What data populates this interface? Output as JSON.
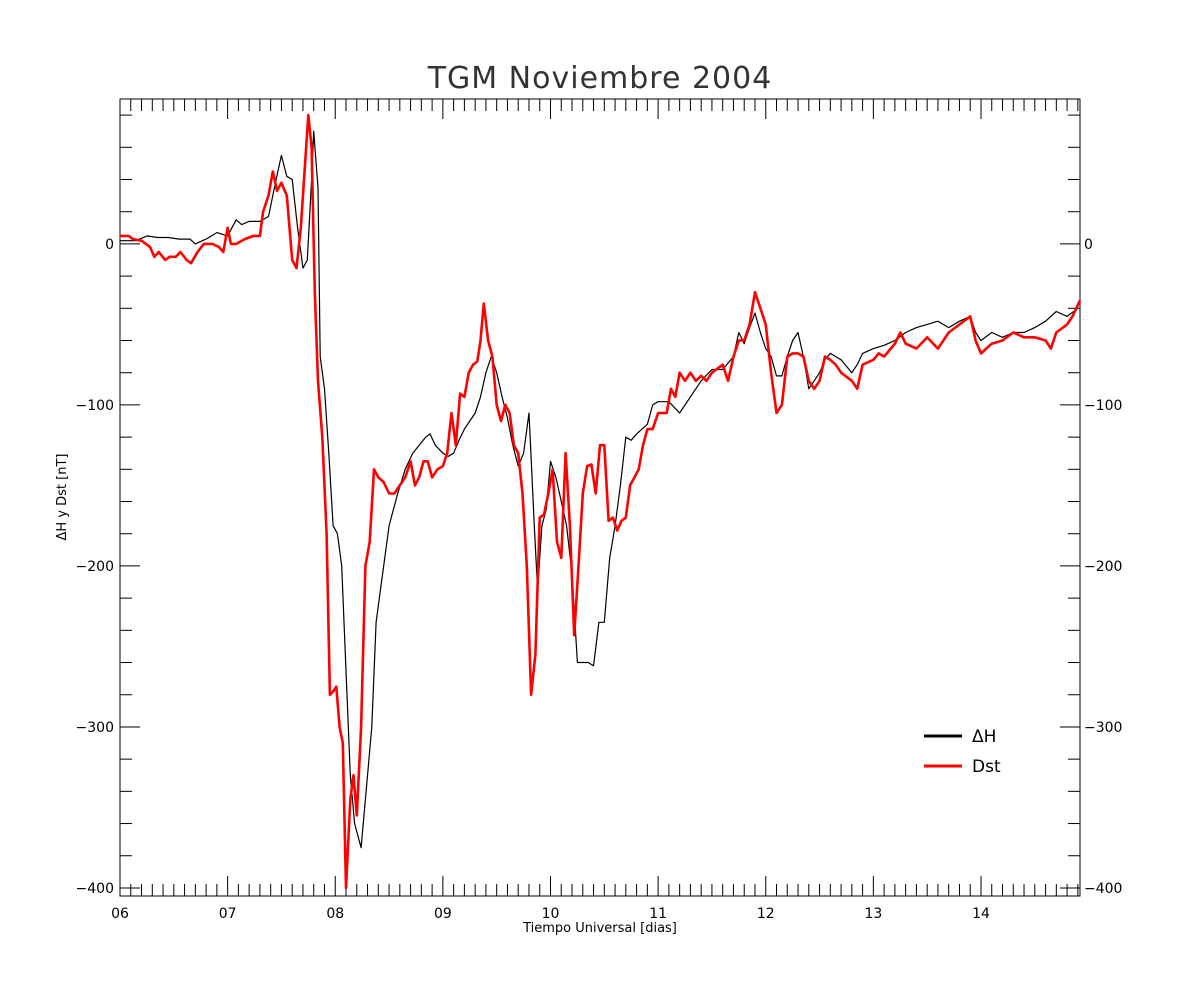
{
  "chart_data": {
    "type": "line",
    "title": "TGM Noviembre 2004",
    "xlabel": "Tiempo Universal [dias]",
    "ylabel": "ΔH y Dst [nT]",
    "xlim": [
      6,
      14.92
    ],
    "ylim": [
      -405,
      90
    ],
    "x_ticks": [
      6,
      7,
      8,
      9,
      10,
      11,
      12,
      13,
      14
    ],
    "x_tick_labels": [
      "06",
      "07",
      "08",
      "09",
      "10",
      "11",
      "12",
      "13",
      "14"
    ],
    "y_ticks": [
      0,
      -100,
      -200,
      -300,
      -400
    ],
    "y_tick_labels": [
      "0",
      "−100",
      "−200",
      "−300",
      "−400"
    ],
    "legend": {
      "position": "lower-right"
    },
    "series": [
      {
        "name": "ΔH",
        "color": "#000000",
        "points": [
          [
            6.0,
            2
          ],
          [
            6.15,
            2
          ],
          [
            6.25,
            5
          ],
          [
            6.35,
            4
          ],
          [
            6.45,
            4
          ],
          [
            6.55,
            3
          ],
          [
            6.65,
            3
          ],
          [
            6.7,
            0
          ],
          [
            6.8,
            3
          ],
          [
            6.9,
            7
          ],
          [
            7.0,
            5
          ],
          [
            7.08,
            15
          ],
          [
            7.13,
            12
          ],
          [
            7.2,
            14
          ],
          [
            7.3,
            14
          ],
          [
            7.38,
            17
          ],
          [
            7.45,
            40
          ],
          [
            7.5,
            55
          ],
          [
            7.55,
            42
          ],
          [
            7.6,
            40
          ],
          [
            7.65,
            10
          ],
          [
            7.7,
            -15
          ],
          [
            7.74,
            -10
          ],
          [
            7.78,
            40
          ],
          [
            7.8,
            70
          ],
          [
            7.84,
            35
          ],
          [
            7.86,
            -70
          ],
          [
            7.9,
            -90
          ],
          [
            7.94,
            -130
          ],
          [
            7.98,
            -175
          ],
          [
            8.02,
            -180
          ],
          [
            8.06,
            -200
          ],
          [
            8.1,
            -265
          ],
          [
            8.14,
            -330
          ],
          [
            8.18,
            -360
          ],
          [
            8.24,
            -375
          ],
          [
            8.28,
            -345
          ],
          [
            8.34,
            -300
          ],
          [
            8.38,
            -235
          ],
          [
            8.43,
            -210
          ],
          [
            8.5,
            -175
          ],
          [
            8.58,
            -155
          ],
          [
            8.65,
            -140
          ],
          [
            8.72,
            -130
          ],
          [
            8.78,
            -125
          ],
          [
            8.84,
            -120
          ],
          [
            8.88,
            -118
          ],
          [
            8.93,
            -125
          ],
          [
            9.0,
            -130
          ],
          [
            9.05,
            -132
          ],
          [
            9.1,
            -130
          ],
          [
            9.15,
            -122
          ],
          [
            9.2,
            -115
          ],
          [
            9.25,
            -110
          ],
          [
            9.3,
            -105
          ],
          [
            9.35,
            -95
          ],
          [
            9.4,
            -80
          ],
          [
            9.45,
            -70
          ],
          [
            9.5,
            -80
          ],
          [
            9.55,
            -95
          ],
          [
            9.6,
            -108
          ],
          [
            9.65,
            -125
          ],
          [
            9.7,
            -138
          ],
          [
            9.75,
            -130
          ],
          [
            9.8,
            -105
          ],
          [
            9.85,
            -175
          ],
          [
            9.88,
            -215
          ],
          [
            9.92,
            -175
          ],
          [
            9.96,
            -165
          ],
          [
            10.0,
            -135
          ],
          [
            10.05,
            -145
          ],
          [
            10.1,
            -160
          ],
          [
            10.15,
            -175
          ],
          [
            10.2,
            -205
          ],
          [
            10.25,
            -260
          ],
          [
            10.3,
            -260
          ],
          [
            10.35,
            -260
          ],
          [
            10.4,
            -262
          ],
          [
            10.45,
            -235
          ],
          [
            10.5,
            -235
          ],
          [
            10.55,
            -195
          ],
          [
            10.6,
            -175
          ],
          [
            10.65,
            -150
          ],
          [
            10.7,
            -120
          ],
          [
            10.75,
            -122
          ],
          [
            10.8,
            -118
          ],
          [
            10.85,
            -115
          ],
          [
            10.9,
            -112
          ],
          [
            10.95,
            -100
          ],
          [
            11.0,
            -98
          ],
          [
            11.1,
            -98
          ],
          [
            11.2,
            -105
          ],
          [
            11.3,
            -95
          ],
          [
            11.4,
            -85
          ],
          [
            11.5,
            -78
          ],
          [
            11.6,
            -78
          ],
          [
            11.7,
            -70
          ],
          [
            11.75,
            -55
          ],
          [
            11.8,
            -62
          ],
          [
            11.85,
            -52
          ],
          [
            11.9,
            -43
          ],
          [
            11.95,
            -55
          ],
          [
            12.0,
            -65
          ],
          [
            12.05,
            -70
          ],
          [
            12.1,
            -82
          ],
          [
            12.15,
            -82
          ],
          [
            12.2,
            -70
          ],
          [
            12.25,
            -60
          ],
          [
            12.3,
            -55
          ],
          [
            12.35,
            -70
          ],
          [
            12.4,
            -90
          ],
          [
            12.45,
            -85
          ],
          [
            12.5,
            -80
          ],
          [
            12.55,
            -72
          ],
          [
            12.6,
            -68
          ],
          [
            12.65,
            -70
          ],
          [
            12.7,
            -72
          ],
          [
            12.8,
            -80
          ],
          [
            12.85,
            -75
          ],
          [
            12.9,
            -68
          ],
          [
            13.0,
            -65
          ],
          [
            13.1,
            -63
          ],
          [
            13.2,
            -60
          ],
          [
            13.3,
            -55
          ],
          [
            13.4,
            -52
          ],
          [
            13.5,
            -50
          ],
          [
            13.6,
            -48
          ],
          [
            13.7,
            -52
          ],
          [
            13.8,
            -48
          ],
          [
            13.9,
            -45
          ],
          [
            13.95,
            -55
          ],
          [
            14.0,
            -60
          ],
          [
            14.1,
            -55
          ],
          [
            14.2,
            -58
          ],
          [
            14.3,
            -55
          ],
          [
            14.4,
            -55
          ],
          [
            14.5,
            -52
          ],
          [
            14.6,
            -48
          ],
          [
            14.7,
            -42
          ],
          [
            14.8,
            -45
          ],
          [
            14.9,
            -40
          ]
        ]
      },
      {
        "name": "Dst",
        "color": "#ff0000",
        "points": [
          [
            6.0,
            5
          ],
          [
            6.08,
            5
          ],
          [
            6.12,
            3
          ],
          [
            6.2,
            2
          ],
          [
            6.28,
            -2
          ],
          [
            6.32,
            -8
          ],
          [
            6.36,
            -5
          ],
          [
            6.42,
            -10
          ],
          [
            6.46,
            -8
          ],
          [
            6.52,
            -8
          ],
          [
            6.56,
            -5
          ],
          [
            6.62,
            -10
          ],
          [
            6.66,
            -12
          ],
          [
            6.72,
            -5
          ],
          [
            6.78,
            0
          ],
          [
            6.86,
            0
          ],
          [
            6.92,
            -2
          ],
          [
            6.96,
            -5
          ],
          [
            7.0,
            10
          ],
          [
            7.03,
            0
          ],
          [
            7.08,
            0
          ],
          [
            7.16,
            3
          ],
          [
            7.24,
            5
          ],
          [
            7.3,
            5
          ],
          [
            7.33,
            20
          ],
          [
            7.38,
            30
          ],
          [
            7.42,
            45
          ],
          [
            7.46,
            33
          ],
          [
            7.5,
            38
          ],
          [
            7.55,
            30
          ],
          [
            7.6,
            -10
          ],
          [
            7.64,
            -15
          ],
          [
            7.68,
            10
          ],
          [
            7.72,
            50
          ],
          [
            7.75,
            80
          ],
          [
            7.78,
            60
          ],
          [
            7.81,
            -30
          ],
          [
            7.84,
            -85
          ],
          [
            7.88,
            -120
          ],
          [
            7.92,
            -180
          ],
          [
            7.95,
            -280
          ],
          [
            7.98,
            -278
          ],
          [
            8.01,
            -275
          ],
          [
            8.04,
            -300
          ],
          [
            8.07,
            -310
          ],
          [
            8.1,
            -400
          ],
          [
            8.14,
            -345
          ],
          [
            8.17,
            -330
          ],
          [
            8.2,
            -355
          ],
          [
            8.24,
            -300
          ],
          [
            8.28,
            -200
          ],
          [
            8.32,
            -185
          ],
          [
            8.36,
            -140
          ],
          [
            8.4,
            -145
          ],
          [
            8.45,
            -148
          ],
          [
            8.5,
            -155
          ],
          [
            8.55,
            -155
          ],
          [
            8.6,
            -150
          ],
          [
            8.65,
            -145
          ],
          [
            8.7,
            -135
          ],
          [
            8.74,
            -150
          ],
          [
            8.78,
            -145
          ],
          [
            8.82,
            -135
          ],
          [
            8.86,
            -135
          ],
          [
            8.9,
            -145
          ],
          [
            8.95,
            -140
          ],
          [
            9.0,
            -138
          ],
          [
            9.04,
            -130
          ],
          [
            9.08,
            -105
          ],
          [
            9.12,
            -125
          ],
          [
            9.16,
            -93
          ],
          [
            9.2,
            -95
          ],
          [
            9.24,
            -80
          ],
          [
            9.28,
            -75
          ],
          [
            9.32,
            -73
          ],
          [
            9.35,
            -60
          ],
          [
            9.38,
            -37
          ],
          [
            9.42,
            -60
          ],
          [
            9.46,
            -70
          ],
          [
            9.5,
            -100
          ],
          [
            9.54,
            -110
          ],
          [
            9.58,
            -100
          ],
          [
            9.62,
            -105
          ],
          [
            9.66,
            -125
          ],
          [
            9.7,
            -130
          ],
          [
            9.74,
            -155
          ],
          [
            9.78,
            -200
          ],
          [
            9.82,
            -280
          ],
          [
            9.86,
            -255
          ],
          [
            9.9,
            -170
          ],
          [
            9.94,
            -168
          ],
          [
            9.98,
            -155
          ],
          [
            10.02,
            -140
          ],
          [
            10.06,
            -185
          ],
          [
            10.1,
            -195
          ],
          [
            10.14,
            -130
          ],
          [
            10.18,
            -175
          ],
          [
            10.22,
            -243
          ],
          [
            10.26,
            -200
          ],
          [
            10.3,
            -155
          ],
          [
            10.34,
            -138
          ],
          [
            10.38,
            -137
          ],
          [
            10.42,
            -155
          ],
          [
            10.46,
            -125
          ],
          [
            10.5,
            -125
          ],
          [
            10.54,
            -172
          ],
          [
            10.58,
            -170
          ],
          [
            10.62,
            -178
          ],
          [
            10.66,
            -172
          ],
          [
            10.7,
            -170
          ],
          [
            10.74,
            -150
          ],
          [
            10.78,
            -145
          ],
          [
            10.82,
            -140
          ],
          [
            10.86,
            -125
          ],
          [
            10.9,
            -115
          ],
          [
            10.95,
            -115
          ],
          [
            11.0,
            -105
          ],
          [
            11.08,
            -105
          ],
          [
            11.12,
            -90
          ],
          [
            11.16,
            -95
          ],
          [
            11.2,
            -80
          ],
          [
            11.25,
            -85
          ],
          [
            11.3,
            -80
          ],
          [
            11.35,
            -85
          ],
          [
            11.4,
            -82
          ],
          [
            11.45,
            -85
          ],
          [
            11.5,
            -80
          ],
          [
            11.6,
            -75
          ],
          [
            11.65,
            -85
          ],
          [
            11.7,
            -70
          ],
          [
            11.75,
            -60
          ],
          [
            11.8,
            -60
          ],
          [
            11.85,
            -50
          ],
          [
            11.9,
            -30
          ],
          [
            11.95,
            -40
          ],
          [
            12.0,
            -50
          ],
          [
            12.05,
            -80
          ],
          [
            12.1,
            -105
          ],
          [
            12.15,
            -100
          ],
          [
            12.2,
            -70
          ],
          [
            12.25,
            -68
          ],
          [
            12.3,
            -68
          ],
          [
            12.35,
            -70
          ],
          [
            12.4,
            -85
          ],
          [
            12.45,
            -90
          ],
          [
            12.5,
            -85
          ],
          [
            12.55,
            -70
          ],
          [
            12.6,
            -72
          ],
          [
            12.65,
            -75
          ],
          [
            12.7,
            -80
          ],
          [
            12.8,
            -85
          ],
          [
            12.85,
            -90
          ],
          [
            12.9,
            -75
          ],
          [
            13.0,
            -72
          ],
          [
            13.05,
            -68
          ],
          [
            13.1,
            -70
          ],
          [
            13.2,
            -62
          ],
          [
            13.25,
            -55
          ],
          [
            13.3,
            -62
          ],
          [
            13.4,
            -65
          ],
          [
            13.5,
            -58
          ],
          [
            13.6,
            -65
          ],
          [
            13.7,
            -55
          ],
          [
            13.8,
            -50
          ],
          [
            13.9,
            -45
          ],
          [
            13.95,
            -60
          ],
          [
            14.0,
            -68
          ],
          [
            14.1,
            -62
          ],
          [
            14.2,
            -60
          ],
          [
            14.3,
            -55
          ],
          [
            14.4,
            -58
          ],
          [
            14.5,
            -58
          ],
          [
            14.6,
            -60
          ],
          [
            14.65,
            -65
          ],
          [
            14.7,
            -55
          ],
          [
            14.8,
            -50
          ],
          [
            14.85,
            -45
          ],
          [
            14.92,
            -35
          ]
        ]
      }
    ]
  }
}
